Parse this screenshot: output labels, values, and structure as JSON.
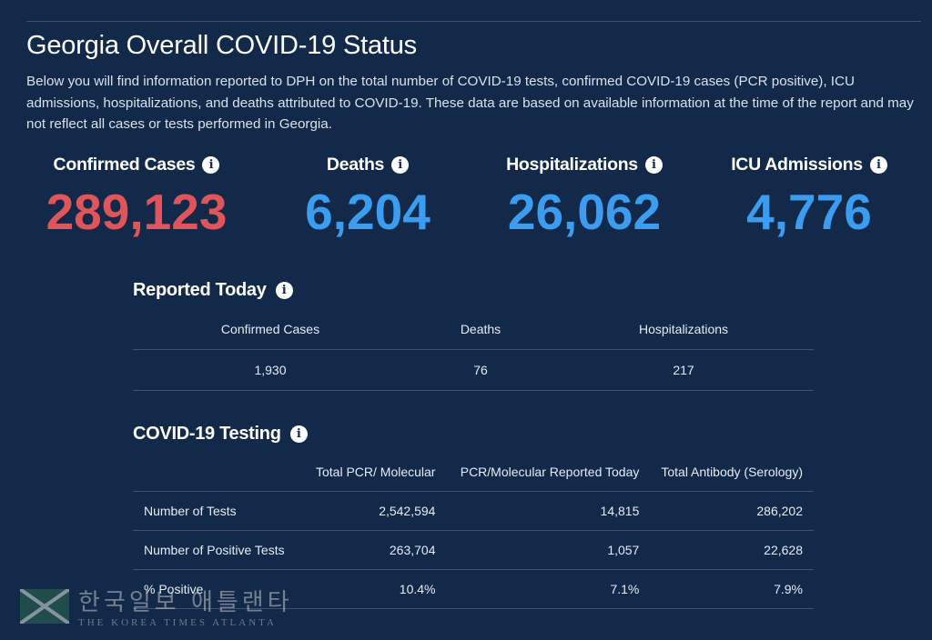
{
  "header": {
    "title": "Georgia Overall COVID-19 Status",
    "description": "Below you will find information reported to DPH on the total number of COVID-19 tests, confirmed COVID-19 cases (PCR positive), ICU admissions, hospitalizations, and deaths attributed to COVID-19. These data are based on available information at the time of the report and may not reflect all cases or tests performed in Georgia."
  },
  "stats": [
    {
      "label": "Confirmed Cases",
      "value": "289,123",
      "color": "#e0555a"
    },
    {
      "label": "Deaths",
      "value": "6,204",
      "color": "#3b9cf0"
    },
    {
      "label": "Hospitalizations",
      "value": "26,062",
      "color": "#3b9cf0"
    },
    {
      "label": "ICU Admissions",
      "value": "4,776",
      "color": "#3b9cf0"
    }
  ],
  "reported_today": {
    "title": "Reported Today",
    "columns": [
      "Confirmed Cases",
      "Deaths",
      "Hospitalizations"
    ],
    "values": [
      "1,930",
      "76",
      "217"
    ]
  },
  "testing": {
    "title": "COVID-19 Testing",
    "columns": [
      "",
      "Total PCR/ Molecular",
      "PCR/Molecular Reported Today",
      "Total Antibody (Serology)"
    ],
    "rows": [
      [
        "Number of Tests",
        "2,542,594",
        "14,815",
        "286,202"
      ],
      [
        "Number of Positive Tests",
        "263,704",
        "1,057",
        "22,628"
      ],
      [
        "% Positive",
        "10.4%",
        "7.1%",
        "7.9%"
      ]
    ]
  },
  "icons": {
    "info": "info-icon"
  },
  "watermark": {
    "korean": "한국일보 애틀랜타",
    "english": "THE KOREA TIMES ATLANTA"
  }
}
